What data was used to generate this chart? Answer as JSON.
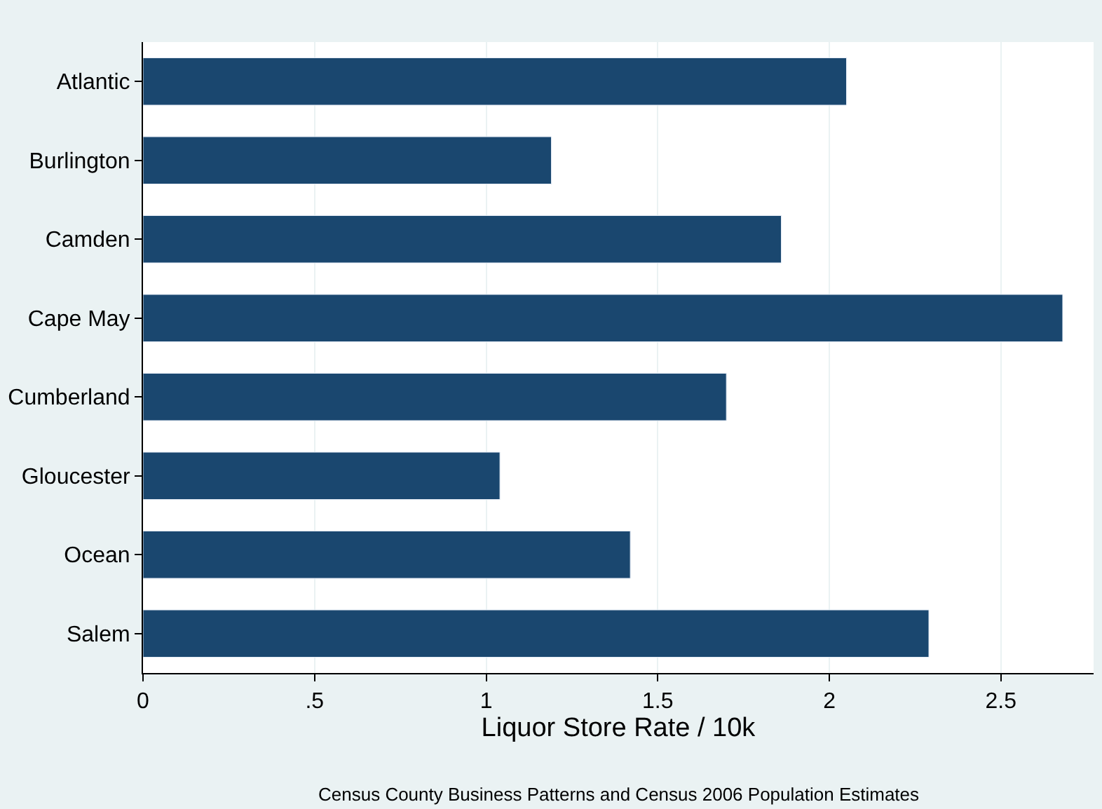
{
  "chart_data": {
    "type": "bar",
    "orientation": "horizontal",
    "xlabel": "Liquor Store Rate / 10k",
    "categories": [
      "Atlantic",
      "Burlington",
      "Camden",
      "Cape May",
      "Cumberland",
      "Gloucester",
      "Ocean",
      "Salem"
    ],
    "values": [
      2.05,
      1.19,
      1.86,
      2.68,
      1.7,
      1.04,
      1.42,
      2.29
    ],
    "color": "#1a476f",
    "xlim": [
      0,
      2.77
    ],
    "xticks": [
      0,
      {
        "value": 0.5,
        "label": ".5"
      },
      1,
      1.5,
      2,
      2.5
    ],
    "grid": "x",
    "annotations": [
      "Census County Business Patterns and Census 2006 Population Estimates"
    ]
  }
}
